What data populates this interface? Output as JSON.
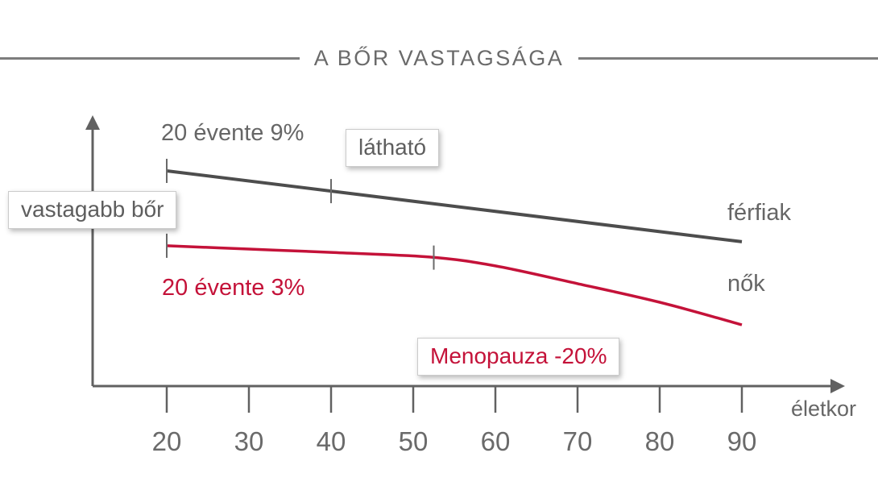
{
  "title": "A BŐR VASTAGSÁGA",
  "colors": {
    "men_line": "#4d4d4d",
    "women_line": "#c41239",
    "axis": "#616161",
    "gray_text": "#666666",
    "red_text": "#c41239",
    "box_border": "#cbcbcb",
    "title_rule": "#7d7d7d"
  },
  "labels": {
    "men_rate": "20 évente 9%",
    "visible_box": "látható",
    "thicker_skin_box": "vastagabb bőr",
    "women_rate": "20 évente 3%",
    "menopause_box": "Menopauza -20%",
    "men_series": "férfiak",
    "women_series": "nők",
    "x_axis": "életkor"
  },
  "chart_data": {
    "type": "line",
    "title": "A BŐR VASTAGSÁGA",
    "xlabel": "életkor",
    "ylabel": "vastagabb bőr",
    "y_unit": "relative skin thickness (arbitrary units, no y ticks shown)",
    "x_range": [
      20,
      90
    ],
    "x_ticks": [
      "20",
      "30",
      "40",
      "50",
      "60",
      "70",
      "80",
      "90"
    ],
    "grid": "off",
    "legend_position": "labels at right end of each line",
    "series": [
      {
        "name": "férfiak",
        "color": "#4d4d4d",
        "annotation": "20 évente 9%",
        "x": [
          20,
          90
        ],
        "values": [
          100,
          68
        ]
      },
      {
        "name": "nők",
        "color": "#c41239",
        "annotation": "20 évente 3%",
        "x": [
          20,
          30,
          40,
          52,
          60,
          70,
          80,
          90
        ],
        "values": [
          66.2,
          64.7,
          63.2,
          61.1,
          57.1,
          49.1,
          40.7,
          30.5
        ]
      }
    ],
    "markers": [
      {
        "series": 0,
        "age": 20,
        "meaning": "20-year interval start (men)"
      },
      {
        "series": 0,
        "age": 40,
        "meaning": "20-year interval end (men)"
      },
      {
        "series": 1,
        "age": 20,
        "meaning": "20-year interval start (women)"
      },
      {
        "series": 1,
        "age": 52.5,
        "meaning": "menopause, -20%"
      }
    ],
    "annotations": [
      "20 évente 9%",
      "látható",
      "vastagabb bőr",
      "20 évente 3%",
      "Menopauza -20%"
    ]
  }
}
